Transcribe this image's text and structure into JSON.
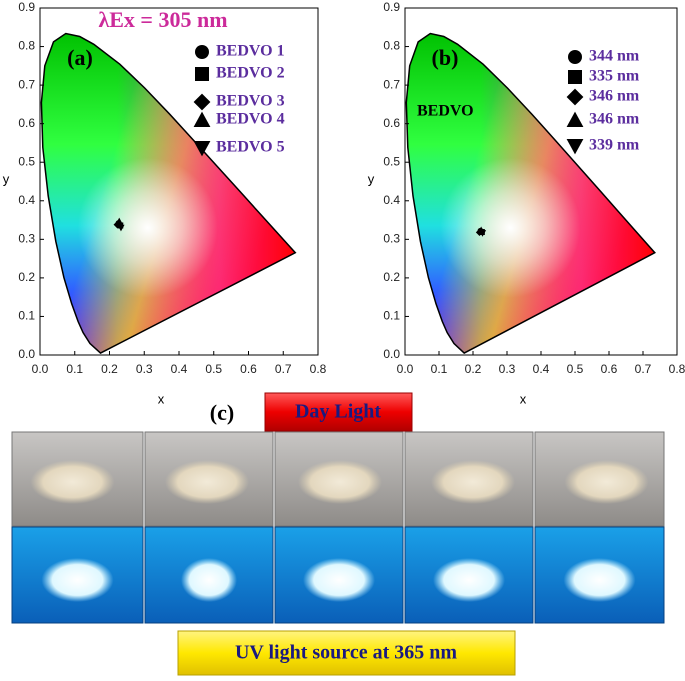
{
  "chart_data": [
    {
      "type": "scatter",
      "panel": "(a)",
      "title": "λEx = 305 nm",
      "xlabel": "x",
      "ylabel": "y",
      "xlim": [
        0,
        0.8
      ],
      "xticks": [
        {
          "value": 0,
          "label": "0.0"
        },
        0.1,
        0.2,
        0.3,
        0.4,
        0.5,
        0.6,
        0.7,
        0.8
      ],
      "ylim": [
        0,
        0.9
      ],
      "yticks": [
        {
          "value": 0,
          "label": "0.0"
        },
        0.1,
        0.2,
        0.3,
        0.4,
        0.5,
        0.6,
        0.7,
        0.8,
        0.9
      ],
      "series": [
        {
          "name": "BEDVO 1",
          "marker": "circle",
          "color": "#000000",
          "x": [
            0.226
          ],
          "values": [
            0.342
          ]
        },
        {
          "name": "BEDVO 2",
          "marker": "square",
          "color": "#000000",
          "x": [
            0.231
          ],
          "values": [
            0.336
          ]
        },
        {
          "name": "BEDVO 3",
          "marker": "diamond",
          "color": "#000000",
          "x": [
            0.222
          ],
          "values": [
            0.338
          ]
        },
        {
          "name": "BEDVO 4",
          "marker": "triangle-up",
          "color": "#000000",
          "x": [
            0.228
          ],
          "values": [
            0.347
          ]
        },
        {
          "name": "BEDVO 5",
          "marker": "triangle-down",
          "color": "#000000",
          "x": [
            0.233
          ],
          "values": [
            0.33
          ]
        }
      ]
    },
    {
      "type": "scatter",
      "panel": "(b)",
      "annotation": "BEDVO",
      "xlabel": "x",
      "ylabel": "y",
      "xlim": [
        0,
        0.8
      ],
      "xticks": [
        {
          "value": 0,
          "label": "0.0"
        },
        0.1,
        0.2,
        0.3,
        0.4,
        0.5,
        0.6,
        0.7,
        0.8
      ],
      "ylim": [
        0,
        0.9
      ],
      "yticks": [
        {
          "value": 0,
          "label": "0.0"
        },
        0.1,
        0.2,
        0.3,
        0.4,
        0.5,
        0.6,
        0.7,
        0.8,
        0.9
      ],
      "series": [
        {
          "name": "344 nm",
          "marker": "circle",
          "color": "#000000",
          "x": [
            0.222
          ],
          "values": [
            0.322
          ]
        },
        {
          "name": "335 nm",
          "marker": "square",
          "color": "#000000",
          "x": [
            0.226
          ],
          "values": [
            0.319
          ]
        },
        {
          "name": "346 nm",
          "marker": "diamond",
          "color": "#000000",
          "x": [
            0.219
          ],
          "values": [
            0.318
          ]
        },
        {
          "name": "346 nm",
          "marker": "triangle-up",
          "color": "#000000",
          "x": [
            0.224
          ],
          "values": [
            0.324
          ]
        },
        {
          "name": "339 nm",
          "marker": "triangle-down",
          "color": "#000000",
          "x": [
            0.228
          ],
          "values": [
            0.316
          ]
        }
      ]
    }
  ],
  "panel_c": {
    "label": "(c)",
    "top_label": "Day Light",
    "bottom_label": "UV light source at 365 nm"
  }
}
